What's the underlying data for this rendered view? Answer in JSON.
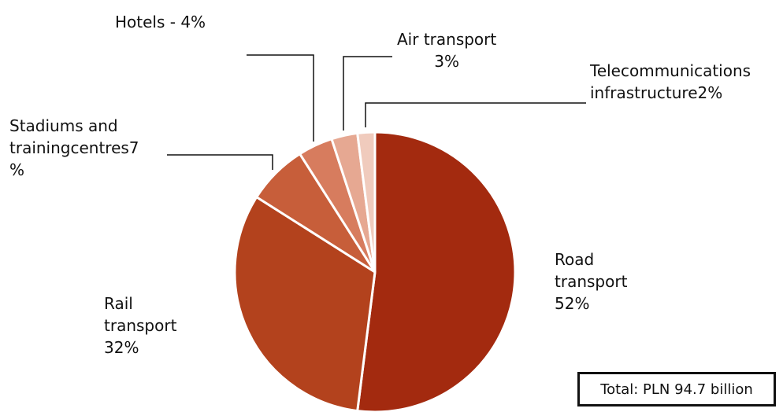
{
  "chart_data": {
    "type": "pie",
    "slices": [
      {
        "label": "Road transport",
        "value": 52,
        "display": "Road\ntransport\n52%",
        "color": "#a32a0f"
      },
      {
        "label": "Rail transport",
        "value": 32,
        "display": "Rail\ntransport\n32%",
        "color": "#b3421d"
      },
      {
        "label": "Stadiums and trainingcentres",
        "value": 7,
        "display": "Stadiums and\ntrainingcentres7\n%",
        "color": "#c75e3a"
      },
      {
        "label": "Hotels",
        "value": 4,
        "display": "Hotels - 4%",
        "color": "#d77c5e"
      },
      {
        "label": "Air transport",
        "value": 3,
        "display": "Air transport\n3%",
        "color": "#e6a892"
      },
      {
        "label": "Telecommunications infrastructure",
        "value": 2,
        "display": "Telecommunications\ninfrastructure2%",
        "color": "#f0cbbd"
      }
    ],
    "total_label": "Total: PLN 94.7 billion"
  }
}
